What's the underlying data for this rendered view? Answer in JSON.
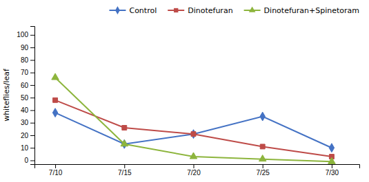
{
  "chart_data": {
    "type": "line",
    "y_label": "whiteflies/leaf",
    "x": [
      0,
      5,
      10,
      15,
      20
    ],
    "xlim": [
      -1.5,
      22
    ],
    "xticks": [
      {
        "value": 0,
        "label": "7/10"
      },
      {
        "value": 5,
        "label": "7/15"
      },
      {
        "value": 10,
        "label": "7/20"
      },
      {
        "value": 15,
        "label": "7/25"
      },
      {
        "value": 20,
        "label": "7/30"
      }
    ],
    "ylim": [
      -3,
      107
    ],
    "yticks": [
      0,
      10,
      20,
      30,
      40,
      50,
      60,
      70,
      80,
      90,
      100
    ],
    "grid": false,
    "legend": "upper right",
    "series": [
      {
        "name": "Control",
        "color": "#4472C4",
        "marker": "diamond",
        "values": [
          38,
          13,
          21,
          35,
          10
        ]
      },
      {
        "name": "Dinotefuran",
        "color": "#BE4B48",
        "marker": "square",
        "values": [
          48,
          26,
          21,
          11,
          3
        ]
      },
      {
        "name": "Dinotefuran+Spinetoram",
        "color": "#8DB53D",
        "marker": "triangle",
        "values": [
          66,
          13,
          3,
          1,
          -1
        ]
      }
    ]
  }
}
